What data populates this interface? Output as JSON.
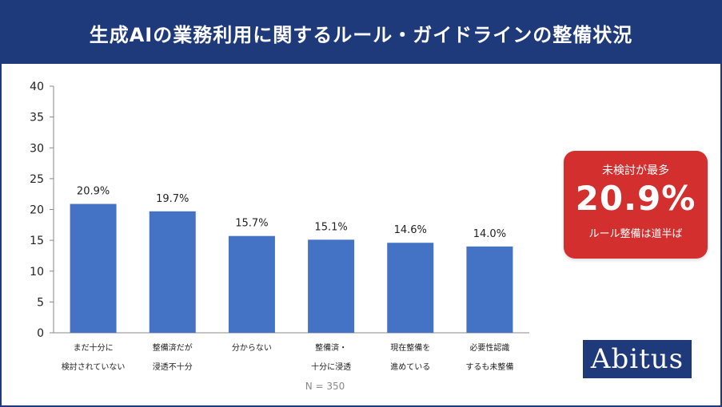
{
  "header": {
    "title": "生成AIの業務利用に関するルール・ガイドラインの整備状況"
  },
  "chart_data": {
    "type": "bar",
    "categories": [
      [
        "まだ十分に",
        "検討されていない"
      ],
      [
        "整備済だが",
        "浸透不十分"
      ],
      [
        "分からない"
      ],
      [
        "整備済・",
        "十分に浸透"
      ],
      [
        "現在整備を",
        "進めている"
      ],
      [
        "必要性認識",
        "するも未整備"
      ]
    ],
    "values": [
      20.9,
      19.7,
      15.7,
      15.1,
      14.6,
      14.0
    ],
    "value_labels": [
      "20.9%",
      "19.7%",
      "15.7%",
      "15.1%",
      "14.6%",
      "14.0%"
    ],
    "ylim": [
      0,
      40
    ],
    "yticks": [
      0,
      5,
      10,
      15,
      20,
      25,
      30,
      35,
      40
    ],
    "bar_color": "#4472c4",
    "note": "N = 350",
    "grid": false
  },
  "callout": {
    "top": "未検討が最多",
    "big": "20.9%",
    "bottom": "ルール整備は道半ば",
    "color": "#d32f2f"
  },
  "logo": {
    "text": "Abitus",
    "color": "#1f3a7a"
  }
}
